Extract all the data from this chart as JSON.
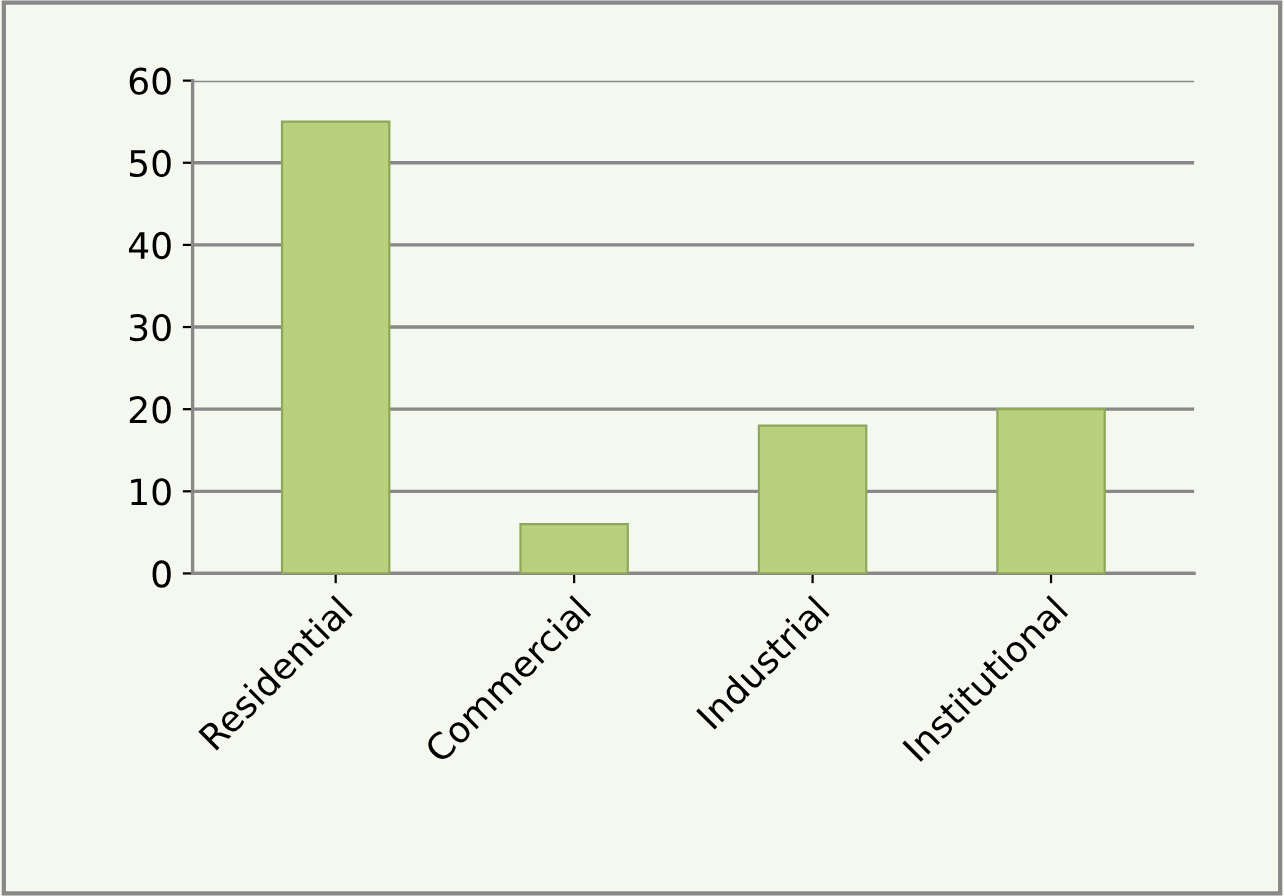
{
  "chart_data": {
    "type": "bar",
    "categories": [
      "Residential",
      "Commercial",
      "Industrial",
      "Institutional"
    ],
    "values": [
      55,
      6,
      18,
      20
    ],
    "color": "#b9d07f",
    "ylim": [
      0,
      60
    ],
    "yticks": [
      0,
      10,
      20,
      30,
      40,
      50,
      60
    ],
    "grid": "y"
  }
}
